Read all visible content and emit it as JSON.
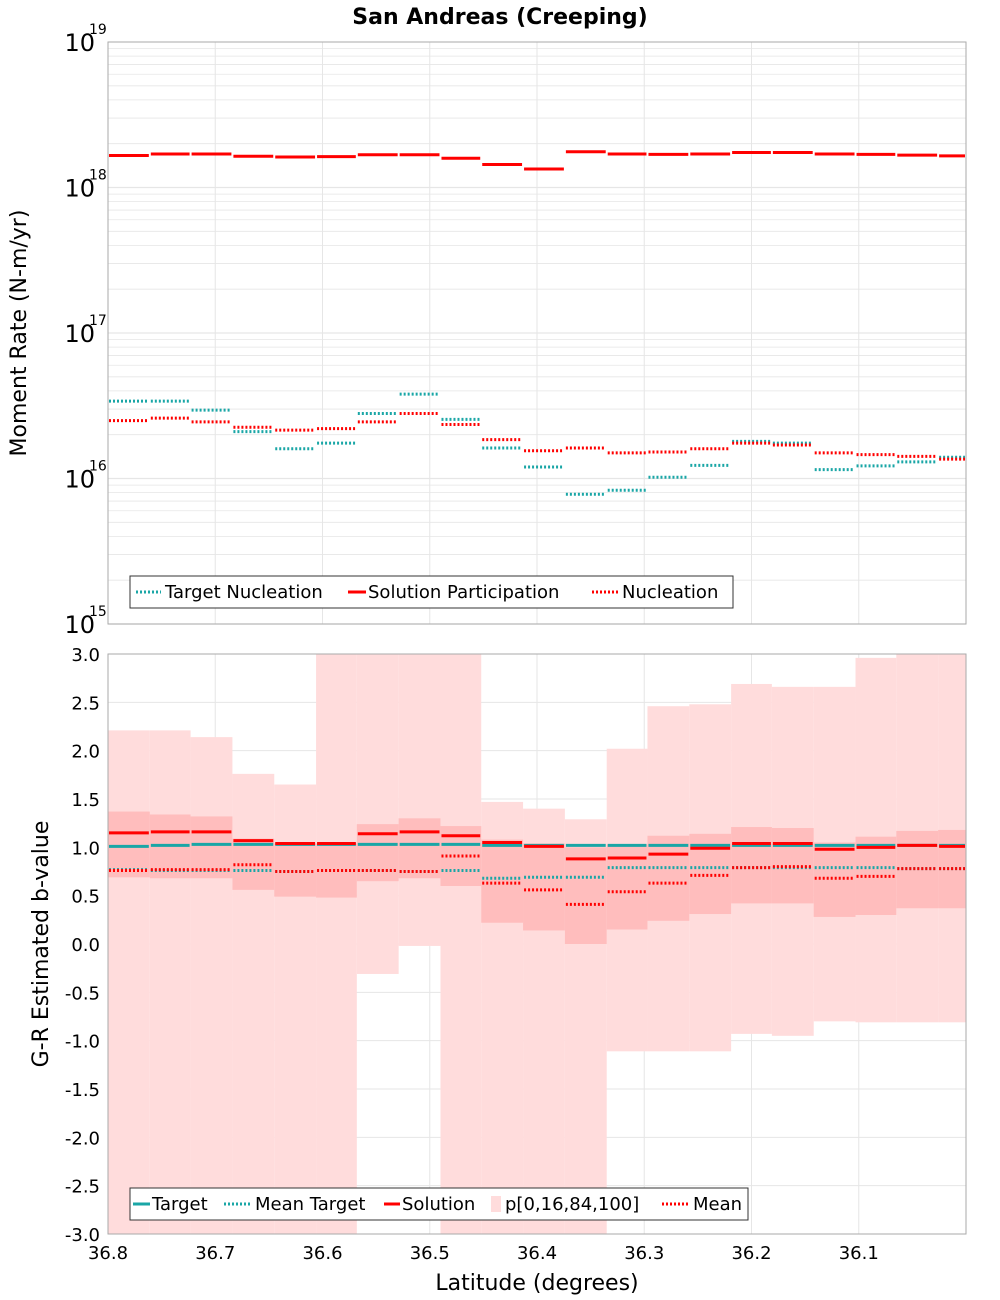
{
  "colors": {
    "target": "#1aa6a6",
    "solution": "#ff0000",
    "band_outer": "#ffdcdc",
    "band_inner": "#ffbdbd",
    "grid": "#e6e6e6"
  },
  "chart_data": [
    {
      "type": "line",
      "panel": "top",
      "title": "San Andreas (Creeping)",
      "ylabel": "Moment Rate (N-m/yr)",
      "yscale": "log",
      "ylim": [
        1000000000000000.0,
        1e+19
      ],
      "ytick_exponents": [
        15,
        16,
        17,
        18,
        19
      ],
      "ytick_base": "10",
      "xlim": [
        36.8,
        36.0
      ],
      "x_edges": [
        36.8,
        36.761,
        36.723,
        36.684,
        36.645,
        36.606,
        36.568,
        36.529,
        36.49,
        36.452,
        36.413,
        36.374,
        36.335,
        36.297,
        36.258,
        36.219,
        36.181,
        36.142,
        36.103,
        36.065,
        36.026,
        36.0
      ],
      "series": [
        {
          "name": "Solution Participation",
          "style": "solid",
          "color": "#ff0000",
          "values": [
            1.66e+18,
            1.7e+18,
            1.7e+18,
            1.64e+18,
            1.62e+18,
            1.63e+18,
            1.68e+18,
            1.68e+18,
            1.59e+18,
            1.44e+18,
            1.34e+18,
            1.76e+18,
            1.7e+18,
            1.69e+18,
            1.7e+18,
            1.74e+18,
            1.74e+18,
            1.7e+18,
            1.69e+18,
            1.67e+18,
            1.65e+18
          ]
        },
        {
          "name": "Target Nucleation",
          "style": "dotted",
          "color": "#1aa6a6",
          "values": [
            3.4e+16,
            3.4e+16,
            2.95e+16,
            2.1e+16,
            1.6e+16,
            1.75e+16,
            2.8e+16,
            3.8e+16,
            2.55e+16,
            1.62e+16,
            1.2e+16,
            7800000000000000.0,
            8300000000000000.0,
            1.02e+16,
            1.23e+16,
            1.8e+16,
            1.75e+16,
            1.15e+16,
            1.22e+16,
            1.3e+16,
            1.4e+16
          ]
        },
        {
          "name": "Nucleation",
          "style": "dotted",
          "color": "#ff0000",
          "values": [
            2.5e+16,
            2.6e+16,
            2.45e+16,
            2.25e+16,
            2.15e+16,
            2.2e+16,
            2.45e+16,
            2.8e+16,
            2.35e+16,
            1.85e+16,
            1.55e+16,
            1.62e+16,
            1.5e+16,
            1.52e+16,
            1.6e+16,
            1.75e+16,
            1.7e+16,
            1.5e+16,
            1.46e+16,
            1.42e+16,
            1.36e+16
          ]
        }
      ],
      "legend": [
        "Target Nucleation",
        "Solution Participation",
        "Nucleation"
      ]
    },
    {
      "type": "line",
      "panel": "bottom",
      "xlabel": "Latitude (degrees)",
      "ylabel": "G-R Estimated b-value",
      "ylim": [
        -3.0,
        3.0
      ],
      "yticks": [
        "3.0",
        "2.5",
        "2.0",
        "1.5",
        "1.0",
        "0.5",
        "0.0",
        "-0.5",
        "-1.0",
        "-1.5",
        "-2.0",
        "-2.5",
        "-3.0"
      ],
      "xlim": [
        36.8,
        36.0
      ],
      "xticks": [
        "36.8",
        "36.7",
        "36.6",
        "36.5",
        "36.4",
        "36.3",
        "36.2",
        "36.1"
      ],
      "x_edges": [
        36.8,
        36.761,
        36.723,
        36.684,
        36.645,
        36.606,
        36.568,
        36.529,
        36.49,
        36.452,
        36.413,
        36.374,
        36.335,
        36.297,
        36.258,
        36.219,
        36.181,
        36.142,
        36.103,
        36.065,
        36.026,
        36.0
      ],
      "series": [
        {
          "name": "Target",
          "style": "solid",
          "color": "#1aa6a6",
          "values": [
            1.01,
            1.02,
            1.03,
            1.03,
            1.03,
            1.03,
            1.03,
            1.03,
            1.03,
            1.02,
            1.02,
            1.02,
            1.02,
            1.02,
            1.02,
            1.02,
            1.02,
            1.02,
            1.02,
            1.02,
            1.02
          ]
        },
        {
          "name": "Mean Target",
          "style": "dotted",
          "color": "#1aa6a6",
          "values": [
            0.77,
            0.76,
            0.76,
            0.76,
            0.75,
            0.76,
            0.76,
            0.75,
            0.76,
            0.68,
            0.69,
            0.69,
            0.79,
            0.79,
            0.79,
            0.79,
            0.79,
            0.79,
            0.79,
            0.78,
            0.78
          ]
        },
        {
          "name": "Solution",
          "style": "solid",
          "color": "#ff0000",
          "values": [
            1.15,
            1.16,
            1.16,
            1.07,
            1.04,
            1.04,
            1.14,
            1.16,
            1.12,
            1.05,
            1.01,
            0.88,
            0.89,
            0.93,
            0.99,
            1.04,
            1.04,
            0.98,
            1.0,
            1.02,
            1.01
          ]
        },
        {
          "name": "Mean",
          "style": "dotted",
          "color": "#ff0000",
          "values": [
            0.76,
            0.77,
            0.77,
            0.82,
            0.75,
            0.76,
            0.76,
            0.75,
            0.91,
            0.63,
            0.56,
            0.41,
            0.54,
            0.63,
            0.71,
            0.79,
            0.8,
            0.68,
            0.7,
            0.78,
            0.78
          ]
        }
      ],
      "band_outer": {
        "label": "p[0,16,84,100]",
        "low": [
          -3.0,
          -3.0,
          -3.0,
          -3.0,
          -3.0,
          -3.0,
          -0.31,
          -0.02,
          -3.0,
          -3.0,
          -3.0,
          -3.0,
          -1.11,
          -1.11,
          -1.11,
          -0.93,
          -0.95,
          -0.8,
          -0.81,
          -0.81,
          -0.81
        ],
        "high": [
          2.21,
          2.21,
          2.14,
          1.76,
          1.65,
          3.0,
          3.0,
          3.0,
          3.0,
          1.47,
          1.4,
          1.29,
          2.02,
          2.46,
          2.48,
          2.69,
          2.66,
          2.66,
          2.96,
          3.0,
          3.0
        ]
      },
      "band_inner": {
        "low": [
          0.69,
          0.68,
          0.68,
          0.56,
          0.49,
          0.48,
          0.65,
          0.68,
          0.6,
          0.22,
          0.14,
          0.0,
          0.15,
          0.24,
          0.31,
          0.42,
          0.42,
          0.28,
          0.3,
          0.37,
          0.37
        ],
        "high": [
          1.37,
          1.34,
          1.32,
          1.09,
          1.04,
          1.04,
          1.24,
          1.3,
          1.22,
          1.08,
          1.04,
          1.0,
          1.03,
          1.12,
          1.14,
          1.21,
          1.2,
          1.05,
          1.11,
          1.17,
          1.18
        ]
      },
      "legend": [
        "Target",
        "Mean Target",
        "Solution",
        "p[0,16,84,100]",
        "Mean"
      ]
    }
  ]
}
